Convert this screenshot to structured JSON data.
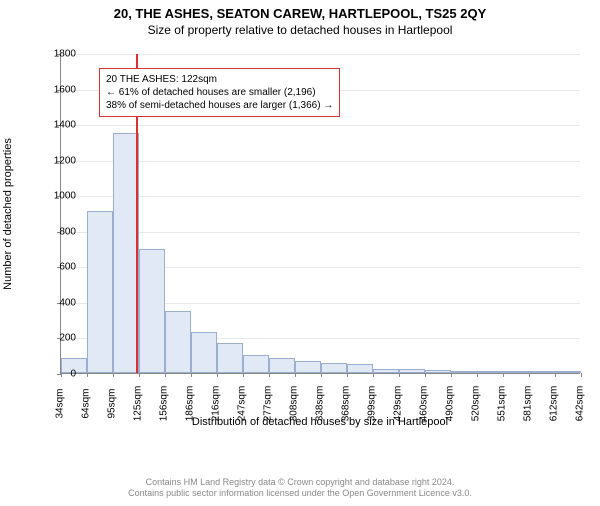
{
  "title": "20, THE ASHES, SEATON CAREW, HARTLEPOOL, TS25 2QY",
  "subtitle": "Size of property relative to detached houses in Hartlepool",
  "chart": {
    "type": "histogram",
    "y_axis_label": "Number of detached properties",
    "x_axis_label": "Distribution of detached houses by size in Hartlepool",
    "ylim": [
      0,
      1800
    ],
    "ytick_step": 200,
    "background_color": "#ffffff",
    "grid_color": "#e8e8e8",
    "axis_color": "#888888",
    "bar_fill": "#e2e9f6",
    "bar_border": "#9aaecf",
    "marker_color": "#d93030",
    "x_ticks": [
      "34sqm",
      "64sqm",
      "95sqm",
      "125sqm",
      "156sqm",
      "186sqm",
      "216sqm",
      "247sqm",
      "277sqm",
      "308sqm",
      "338sqm",
      "368sqm",
      "399sqm",
      "429sqm",
      "460sqm",
      "490sqm",
      "520sqm",
      "551sqm",
      "581sqm",
      "612sqm",
      "642sqm"
    ],
    "bars": [
      85,
      910,
      1350,
      700,
      350,
      230,
      170,
      100,
      85,
      70,
      55,
      50,
      25,
      20,
      15,
      8,
      8,
      12,
      0,
      5
    ],
    "marker_value": 122,
    "x_min": 34,
    "x_max": 642,
    "callout_lines": [
      "20 THE ASHES: 122sqm",
      "← 61% of detached houses are smaller (2,196)",
      "38% of semi-detached houses are larger (1,366) →"
    ]
  },
  "footer": {
    "line1": "Contains HM Land Registry data © Crown copyright and database right 2024.",
    "line2": "Contains public sector information licensed under the Open Government Licence v3.0."
  }
}
